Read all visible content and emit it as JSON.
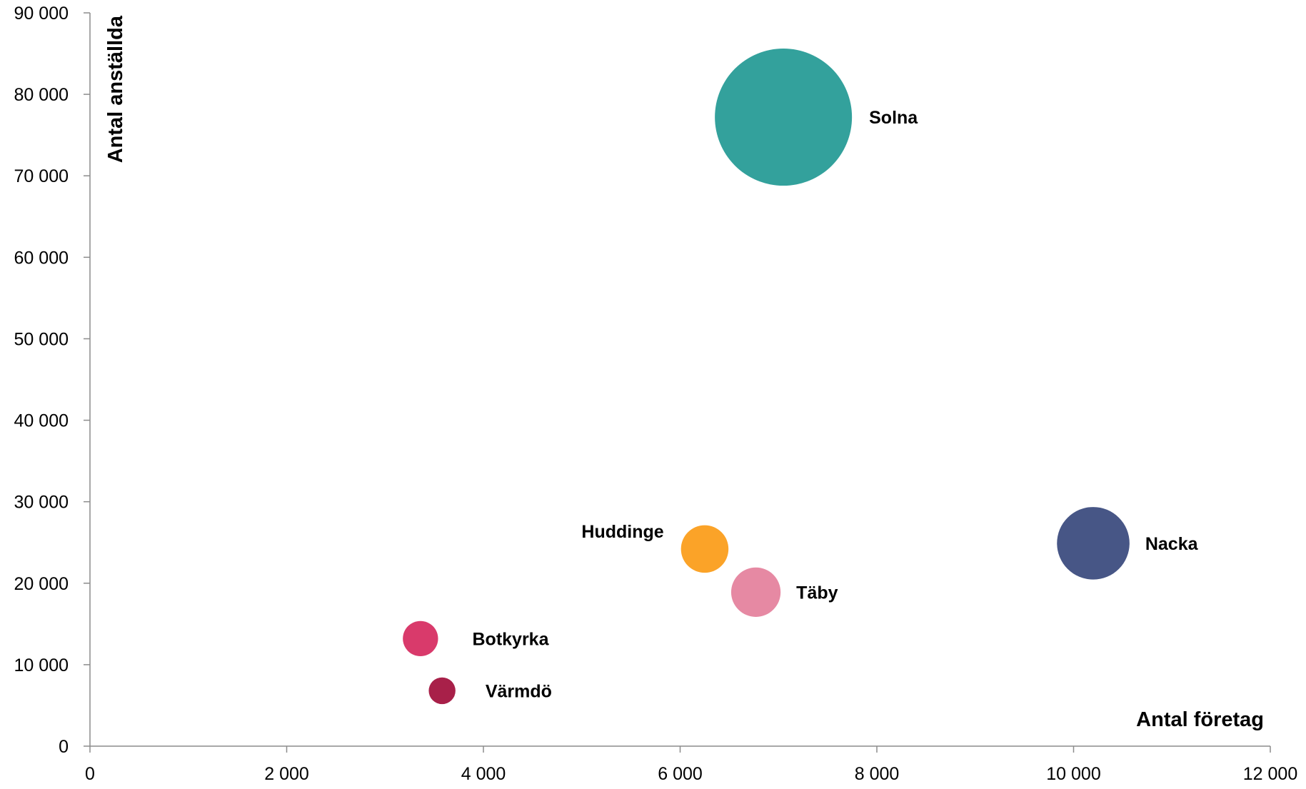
{
  "chart_data": {
    "type": "scatter",
    "subtype": "bubble",
    "xlabel": "Antal företag",
    "ylabel": "Antal anställda",
    "xlim": [
      0,
      12000
    ],
    "ylim": [
      0,
      90000
    ],
    "x_ticks": [
      0,
      2000,
      4000,
      6000,
      8000,
      10000,
      12000
    ],
    "x_tick_labels": [
      "0",
      "2 000",
      "4 000",
      "6 000",
      "8 000",
      "10 000",
      "12 000"
    ],
    "y_ticks": [
      0,
      10000,
      20000,
      30000,
      40000,
      50000,
      60000,
      70000,
      80000,
      90000
    ],
    "y_tick_labels": [
      "0",
      "10 000",
      "20 000",
      "30 000",
      "40 000",
      "50 000",
      "60 000",
      "70 000",
      "80 000",
      "90 000"
    ],
    "grid": false,
    "legend": "none",
    "points": [
      {
        "label": "Solna",
        "x": 7050,
        "y": 77200,
        "size": 1.0,
        "color": "#33A19C"
      },
      {
        "label": "Nacka",
        "x": 10200,
        "y": 24900,
        "size": 0.28,
        "color": "#475686"
      },
      {
        "label": "Huddinge",
        "x": 6250,
        "y": 24200,
        "size": 0.12,
        "color": "#FBA328"
      },
      {
        "label": "Täby",
        "x": 6770,
        "y": 18900,
        "size": 0.13,
        "color": "#E689A3"
      },
      {
        "label": "Botkyrka",
        "x": 3360,
        "y": 13200,
        "size": 0.066,
        "color": "#D93A6B"
      },
      {
        "label": "Värmdö",
        "x": 3580,
        "y": 6800,
        "size": 0.038,
        "color": "#A82049"
      }
    ]
  }
}
